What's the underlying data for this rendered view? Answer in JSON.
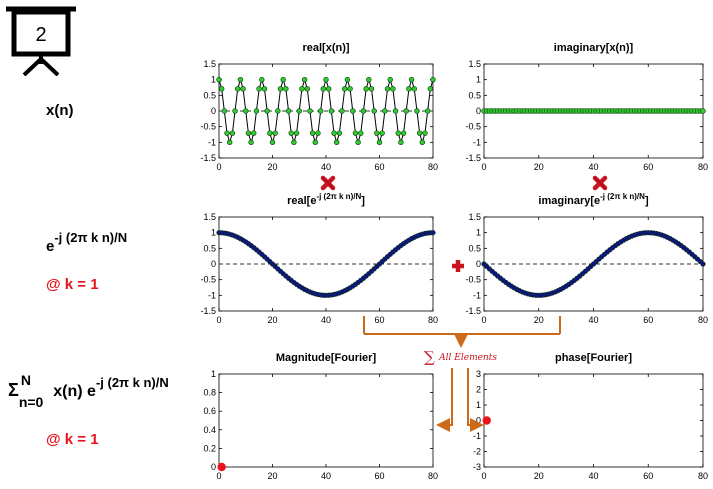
{
  "step_number": "2",
  "colors": {
    "green_marker": "#2ecc2e",
    "blue_marker": "#10108a",
    "red_point": "#e8141e",
    "orange_arrow": "#cc6a1a",
    "red_text": "#e8141e"
  },
  "row_labels": {
    "xn": "x(n)",
    "kernel_base": "e",
    "kernel_exp": "-j (2π k n)/N",
    "k_eq_1": "@ k = 1",
    "sum_symbol": "Σ",
    "sum_upper": "N",
    "sum_lower": "n=0",
    "sum_body": "x(n) e",
    "sum_exp": "-j (2π k n)/N",
    "k_eq_1_bottom": "@ k = 1"
  },
  "operators": {
    "times_icon": "multiply-icon",
    "plus_icon": "plus-icon"
  },
  "sum_annotation": {
    "symbol": "∑",
    "text": "All Elements"
  },
  "chart_data": [
    {
      "id": "real-xn",
      "type": "line",
      "title": "real[x(n)]",
      "title_parts": {
        "main": "real[x(n)]",
        "sup": "",
        "end": ""
      },
      "series_function": "cos(2*pi*10*n/80)",
      "x_range": [
        0,
        80
      ],
      "n_points": 80,
      "xlim": [
        0,
        80
      ],
      "ylim": [
        -1.5,
        1.5
      ],
      "xticks": [
        0,
        20,
        40,
        60,
        80
      ],
      "yticks": [
        -1.5,
        -1,
        -0.5,
        0,
        0.5,
        1,
        1.5
      ],
      "ytick_labels": [
        "-1.5",
        "-1",
        "-0.5",
        "0",
        "0.5",
        "1",
        "1.5"
      ],
      "marker_color": "#2ecc2e",
      "marker_radius": 2.4,
      "line_color": "#000000",
      "zero_line": true
    },
    {
      "id": "imag-xn",
      "type": "line",
      "title": "imaginary[x(n)]",
      "title_parts": {
        "main": "imaginary[x(n)]",
        "sup": "",
        "end": ""
      },
      "series_function": "0",
      "x_range": [
        0,
        80
      ],
      "n_points": 80,
      "xlim": [
        0,
        80
      ],
      "ylim": [
        -1.5,
        1.5
      ],
      "xticks": [
        0,
        20,
        40,
        60,
        80
      ],
      "yticks": [
        -1.5,
        -1,
        -0.5,
        0,
        0.5,
        1,
        1.5
      ],
      "ytick_labels": [
        "-1.5",
        "-1",
        "-0.5",
        "0",
        "0.5",
        "1",
        "1.5"
      ],
      "marker_color": "#2ecc2e",
      "marker_radius": 2.4,
      "line_color": "#000000",
      "zero_line": true
    },
    {
      "id": "real-kernel",
      "type": "line",
      "title": "real[e^-j (2π k n)/N]",
      "title_parts": {
        "main": "real[e",
        "sup": "-j (2π k n)/N",
        "end": "]"
      },
      "series_function": "cos(2*pi*n/80)",
      "x_range": [
        0,
        80
      ],
      "n_points": 80,
      "xlim": [
        0,
        80
      ],
      "ylim": [
        -1.5,
        1.5
      ],
      "xticks": [
        0,
        20,
        40,
        60,
        80
      ],
      "yticks": [
        -1.5,
        -1,
        -0.5,
        0,
        0.5,
        1,
        1.5
      ],
      "ytick_labels": [
        "-1.5",
        "-1",
        "-0.5",
        "0",
        "0.5",
        "1",
        "1.5"
      ],
      "marker_color": "#10108a",
      "marker_radius": 2.3,
      "line_color": "#10108a",
      "zero_line": true
    },
    {
      "id": "imag-kernel",
      "type": "line",
      "title": "imaginary[e^-j (2π k n)/N]",
      "title_parts": {
        "main": "imaginary[e",
        "sup": "-j (2π k n)/N",
        "end": "]"
      },
      "series_function": "-sin(2*pi*n/80)",
      "x_range": [
        0,
        80
      ],
      "n_points": 80,
      "xlim": [
        0,
        80
      ],
      "ylim": [
        -1.5,
        1.5
      ],
      "xticks": [
        0,
        20,
        40,
        60,
        80
      ],
      "yticks": [
        -1.5,
        -1,
        -0.5,
        0,
        0.5,
        1,
        1.5
      ],
      "ytick_labels": [
        "-1.5",
        "-1",
        "-0.5",
        "0",
        "0.5",
        "1",
        "1.5"
      ],
      "marker_color": "#10108a",
      "marker_radius": 2.3,
      "line_color": "#10108a",
      "zero_line": true
    },
    {
      "id": "magnitude",
      "type": "scatter",
      "title": "Magnitude[Fourier]",
      "title_parts": {
        "main": "Magnitude[Fourier]",
        "sup": "",
        "end": ""
      },
      "points": [
        [
          1,
          0
        ]
      ],
      "xlim": [
        0,
        80
      ],
      "ylim": [
        0,
        1
      ],
      "xticks": [
        0,
        20,
        40,
        60,
        80
      ],
      "yticks": [
        0,
        0.2,
        0.4,
        0.6,
        0.8,
        1
      ],
      "ytick_labels": [
        "0",
        "0.2",
        "0.4",
        "0.6",
        "0.8",
        "1"
      ],
      "point_color": "#e8141e",
      "point_radius": 4.2,
      "zero_line": true
    },
    {
      "id": "phase",
      "type": "scatter",
      "title": "phase[Fourier]",
      "title_parts": {
        "main": "phase[Fourier]",
        "sup": "",
        "end": ""
      },
      "points": [
        [
          1,
          0
        ]
      ],
      "xlim": [
        0,
        80
      ],
      "ylim": [
        -3,
        3
      ],
      "xticks": [
        0,
        20,
        40,
        60,
        80
      ],
      "yticks": [
        -3,
        -2,
        -1,
        0,
        1,
        2,
        3
      ],
      "ytick_labels": [
        "-3",
        "-2",
        "-1",
        "0",
        "1",
        "2",
        "3"
      ],
      "point_color": "#e8141e",
      "point_radius": 4.2,
      "zero_line": false
    }
  ]
}
